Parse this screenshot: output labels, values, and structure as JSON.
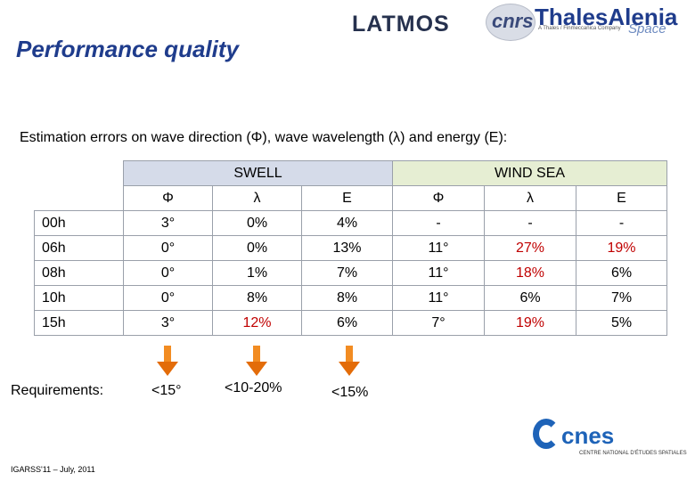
{
  "title": "Performance quality",
  "subtitle": "Estimation errors on wave direction (Φ), wave wavelength (λ) and energy (E):",
  "logos": {
    "latmos": "LATMOS",
    "cnrs": "cnrs",
    "thales": "ThalesAlenia",
    "thales_space": "Space",
    "thales_sub": "A Thales / Finmeccanica Company",
    "cnes": "cnes",
    "cnes_sub": "CENTRE NATIONAL D'ÉTUDES SPATIALES"
  },
  "table": {
    "group_headers": [
      "SWELL",
      "WIND SEA"
    ],
    "col_headers": [
      "Φ",
      "λ",
      "E",
      "Φ",
      "λ",
      "E"
    ],
    "rows": [
      {
        "label": "00h",
        "cells": [
          "3°",
          "0%",
          "4%",
          "-",
          "-",
          "-"
        ]
      },
      {
        "label": "06h",
        "cells": [
          "0°",
          "0%",
          "13%",
          "11°",
          "27%",
          "19%"
        ]
      },
      {
        "label": "08h",
        "cells": [
          "0°",
          "1%",
          "7%",
          "11°",
          "18%",
          "6%"
        ]
      },
      {
        "label": "10h",
        "cells": [
          "0°",
          "8%",
          "8%",
          "11°",
          "6%",
          "7%"
        ]
      },
      {
        "label": "15h",
        "cells": [
          "3°",
          "12%",
          "6%",
          "7°",
          "19%",
          "5%"
        ]
      }
    ]
  },
  "requirements": {
    "label": "Requirements:",
    "values": [
      "<15°",
      "<10-20%",
      "<15%"
    ]
  },
  "footer": "IGARSS'11 – July, 2011",
  "colors": {
    "title": "#1f3c8c",
    "swell_header": "#d5dbe9",
    "windsea_header": "#e6eed3",
    "highlight": "#c00000",
    "arrow": "#e36c09"
  }
}
